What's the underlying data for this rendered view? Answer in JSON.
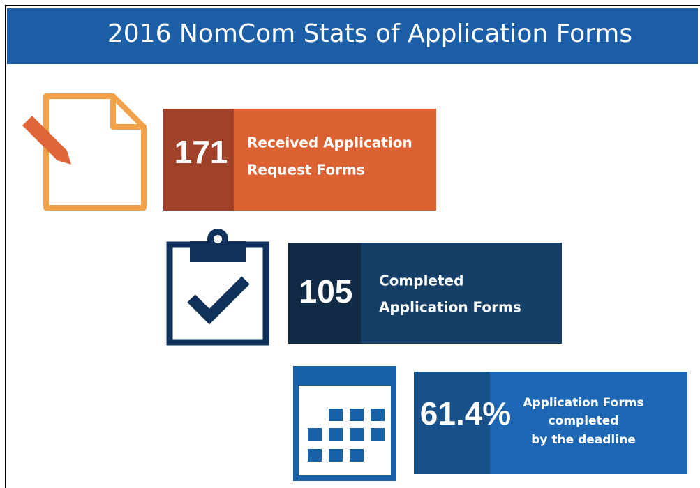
{
  "header": {
    "title": "2016 NomCom Stats of Application Forms"
  },
  "stats": [
    {
      "value": "171",
      "label": [
        "Received Application",
        "Request Forms"
      ]
    },
    {
      "value": "105",
      "label": [
        "Completed",
        "Application Forms"
      ]
    },
    {
      "value": "61.4%",
      "label": [
        "Application Forms",
        "completed",
        "by the deadline"
      ]
    }
  ]
}
